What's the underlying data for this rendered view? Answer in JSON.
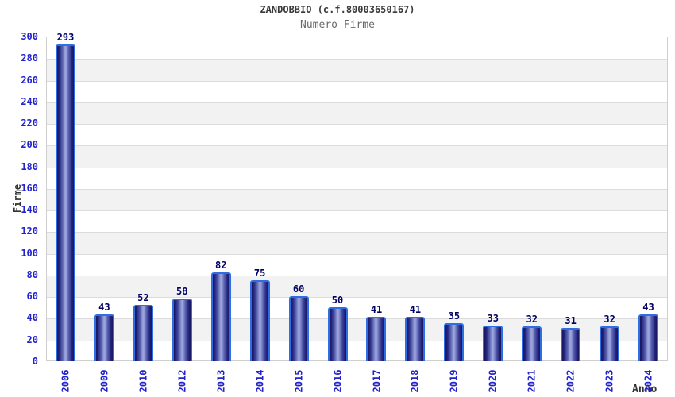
{
  "title": "ZANDOBBIO (c.f.80003650167)",
  "subtitle": "Numero Firme",
  "chart_data": {
    "type": "bar",
    "title": "ZANDOBBIO (c.f.80003650167)",
    "subtitle": "Numero Firme",
    "xlabel": "Anno",
    "ylabel": "Firme",
    "categories": [
      "2006",
      "2009",
      "2010",
      "2012",
      "2013",
      "2014",
      "2015",
      "2016",
      "2017",
      "2018",
      "2019",
      "2020",
      "2021",
      "2022",
      "2023",
      "2024"
    ],
    "values": [
      293,
      43,
      52,
      58,
      82,
      75,
      60,
      50,
      41,
      41,
      35,
      33,
      32,
      31,
      32,
      43
    ],
    "ylim": [
      0,
      300
    ],
    "ytick_step": 20,
    "y_ticks": [
      0,
      20,
      40,
      60,
      80,
      100,
      120,
      140,
      160,
      180,
      200,
      220,
      240,
      260,
      280,
      300
    ],
    "grid": true,
    "legend": "none",
    "colors": {
      "bar_border": "#2e6ee2",
      "bar_dark": "#16165e",
      "bar_light": "#9ba4dd",
      "tick_label": "#2323cc",
      "value_label": "#000066",
      "axis_title": "#333333",
      "gridline": "#dcdcdc",
      "alt_band": "#f2f2f2",
      "plot_border": "#cfcfcf"
    }
  }
}
